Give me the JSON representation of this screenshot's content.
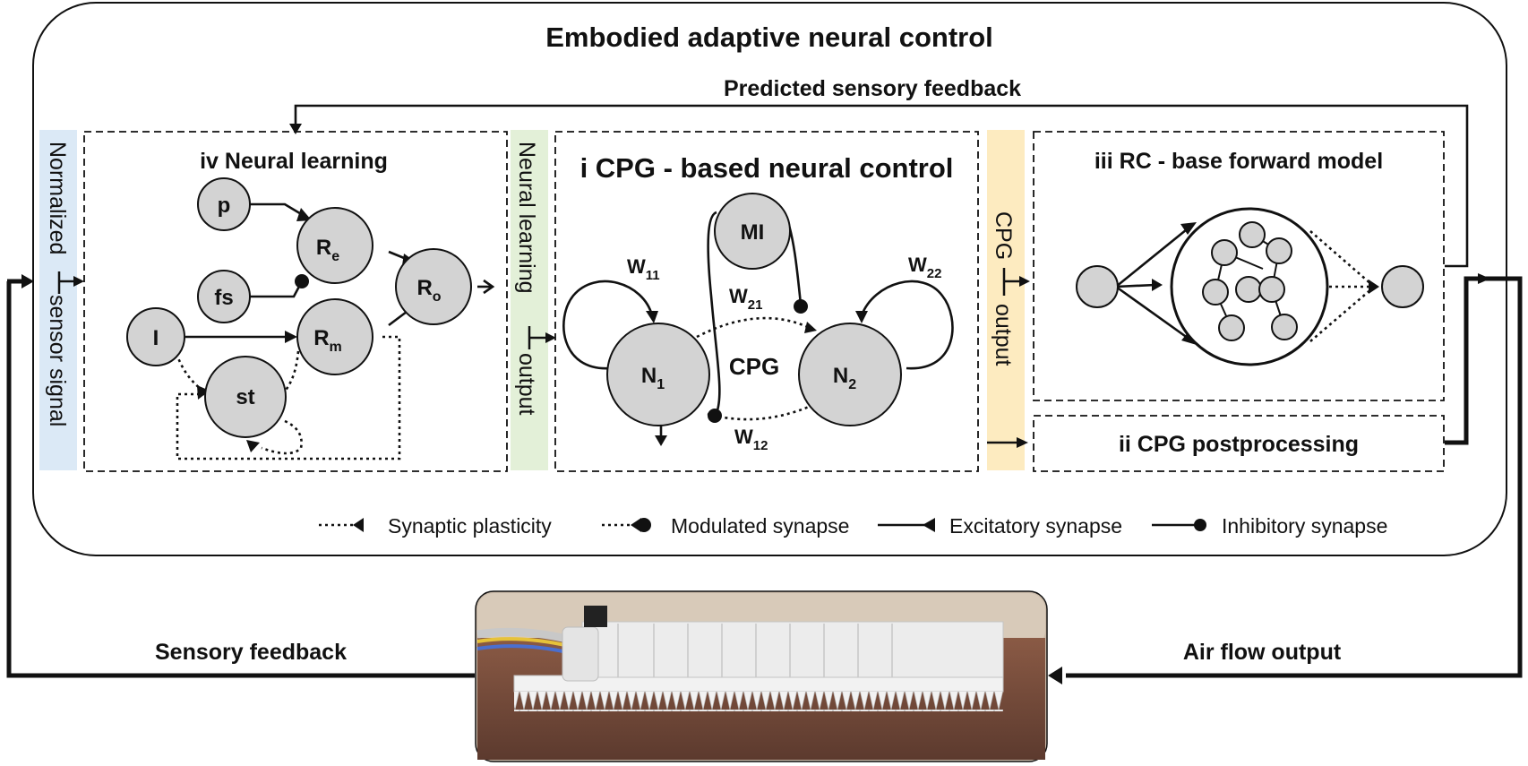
{
  "title": "Embodied adaptive neural control",
  "predicted_feedback_label": "Predicted sensory feedback",
  "side_bars": {
    "normalized_left": "Normalized",
    "normalized_right": "sensor signal",
    "neural_learning_top": "Neural learning",
    "neural_learning_bottom": "output",
    "cpg_top": "CPG",
    "cpg_bottom": "output"
  },
  "panels": {
    "neural_learning": {
      "title": "iv Neural learning",
      "nodes": {
        "p": "p",
        "fs": "fs",
        "i": "I",
        "st": "st",
        "re": "R",
        "re_sub": "e",
        "ro": "R",
        "ro_sub": "o",
        "rm": "R",
        "rm_sub": "m"
      }
    },
    "cpg": {
      "title": "i CPG - based neural control",
      "nodes": {
        "mi": "MI",
        "n1": "N",
        "n1_sub": "1",
        "n2": "N",
        "n2_sub": "2"
      },
      "center_label": "CPG",
      "weights": {
        "w11": "W",
        "w11_sub": "11",
        "w22": "W",
        "w22_sub": "22",
        "w21": "W",
        "w21_sub": "21",
        "w12": "W",
        "w12_sub": "12"
      }
    },
    "rc": {
      "title": "iii RC - base forward model"
    },
    "postprocessing": {
      "title": "ii CPG postprocessing"
    }
  },
  "legend": [
    {
      "type": "dotted-triangle",
      "label": "Synaptic plasticity"
    },
    {
      "type": "dotted-circle",
      "label": "Modulated synapse"
    },
    {
      "type": "solid-triangle",
      "label": "Excitatory synapse"
    },
    {
      "type": "solid-circle",
      "label": "Inhibitory synapse"
    }
  ],
  "bottom_labels": {
    "sensory_feedback": "Sensory feedback",
    "air_flow_output": "Air flow output"
  },
  "colors": {
    "normalized_bar": "#dbe9f6",
    "neural_learning_bar": "#e3f0d8",
    "cpg_bar": "#fdebc0",
    "node_fill": "#d3d3d3",
    "photo_background": "#6a4436",
    "robot_body": "#eeeeee"
  }
}
